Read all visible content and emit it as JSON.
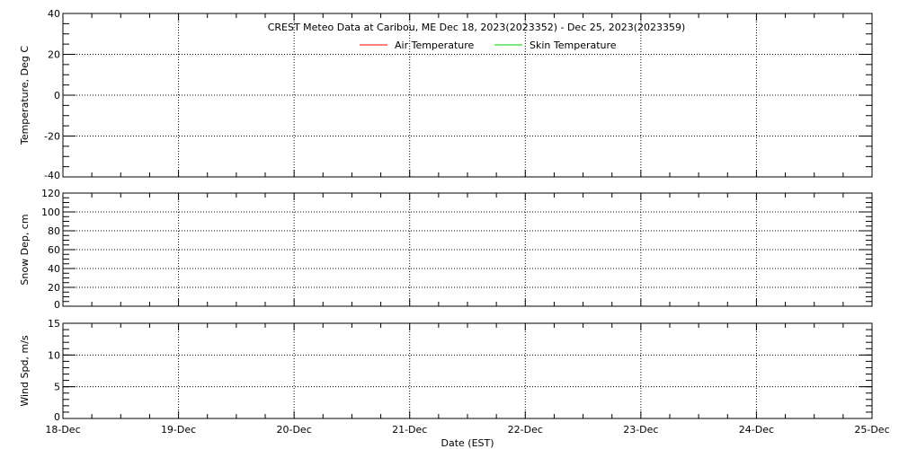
{
  "chart_data": [
    {
      "type": "line",
      "title": "CREST Meteo Data at Caribou, ME   Dec 18, 2023(2023352) - Dec 25, 2023(2023359)",
      "ylabel": "Temperature, Deg C",
      "ylim": [
        -40,
        40
      ],
      "yticks": [
        -40,
        -20,
        0,
        20,
        40
      ],
      "yminor_step": 5,
      "grid": true,
      "legend_position": "top-center",
      "series": [
        {
          "name": "Air Temperature",
          "color": "#ff0000",
          "values": []
        },
        {
          "name": "Skin Temperature",
          "color": "#00cc00",
          "values": []
        }
      ]
    },
    {
      "type": "line",
      "ylabel": "Snow Dep, cm",
      "ylim": [
        0,
        120
      ],
      "yticks": [
        0,
        20,
        40,
        60,
        80,
        100,
        120
      ],
      "yminor_step": 5,
      "grid": true,
      "series": []
    },
    {
      "type": "line",
      "ylabel": "Wind Spd, m/s",
      "ylim": [
        0,
        15
      ],
      "yticks": [
        0,
        5,
        10,
        15
      ],
      "yminor_step": 1,
      "grid": true,
      "series": []
    }
  ],
  "xaxis": {
    "label": "Date (EST)",
    "ticks": [
      "18-Dec",
      "19-Dec",
      "20-Dec",
      "21-Dec",
      "22-Dec",
      "23-Dec",
      "24-Dec",
      "25-Dec"
    ],
    "minor_per_day": 4
  }
}
